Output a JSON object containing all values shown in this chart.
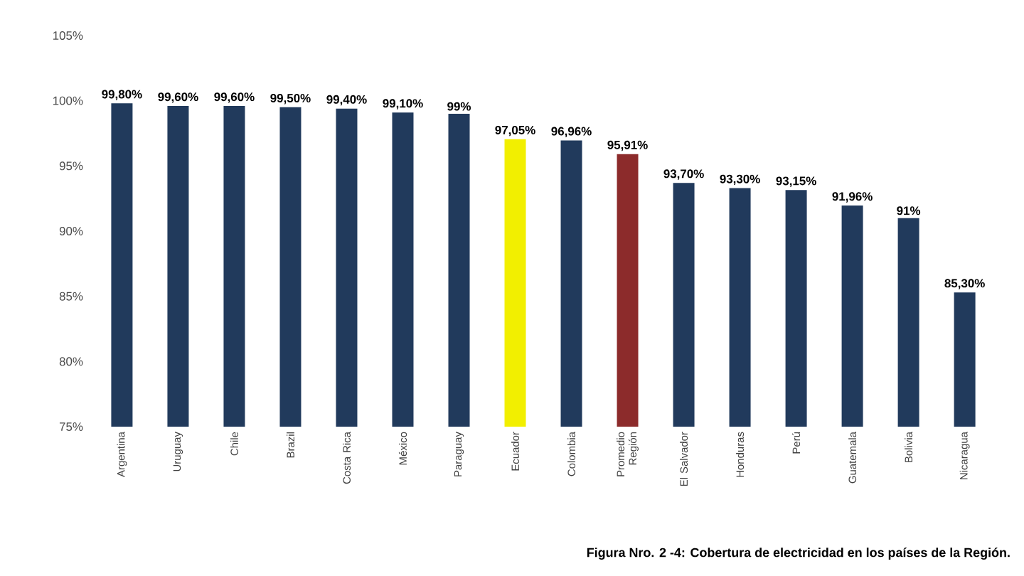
{
  "chart_data": {
    "type": "bar",
    "categories": [
      "Argentina",
      "Uruguay",
      "Chile",
      "Brazil",
      "Costa Rica",
      "México",
      "Paraguay",
      "Ecuador",
      "Colombia",
      "Promedio Región",
      "El Salvador",
      "Honduras",
      "Perú",
      "Guatemala",
      "Bolivia",
      "Nicaragua"
    ],
    "values": [
      99.8,
      99.6,
      99.6,
      99.5,
      99.4,
      99.1,
      99,
      97.05,
      96.96,
      95.91,
      93.7,
      93.3,
      93.15,
      91.96,
      91,
      85.3
    ],
    "value_labels": [
      "99,80%",
      "99,60%",
      "99,60%",
      "99,50%",
      "99,40%",
      "99,10%",
      "99%",
      "97,05%",
      "96,96%",
      "95,91%",
      "93,70%",
      "93,30%",
      "93,15%",
      "91,96%",
      "91%",
      "85,30%"
    ],
    "colors": [
      "#213a5c",
      "#213a5c",
      "#213a5c",
      "#213a5c",
      "#213a5c",
      "#213a5c",
      "#213a5c",
      "#f2ef00",
      "#213a5c",
      "#8c2b2b",
      "#213a5c",
      "#213a5c",
      "#213a5c",
      "#213a5c",
      "#213a5c",
      "#213a5c"
    ],
    "ylim": [
      75,
      105
    ],
    "yticks": [
      {
        "value": 75,
        "label": "75%"
      },
      {
        "value": 80,
        "label": "80%"
      },
      {
        "value": 85,
        "label": "85%"
      },
      {
        "value": 90,
        "label": "90%"
      },
      {
        "value": 95,
        "label": "95%"
      },
      {
        "value": 100,
        "label": "100%"
      },
      {
        "value": 105,
        "label": "105%"
      }
    ],
    "annotations": [
      "Figura Nro. 2 -4: Cobertura de electricidad en los países de la Región."
    ]
  }
}
